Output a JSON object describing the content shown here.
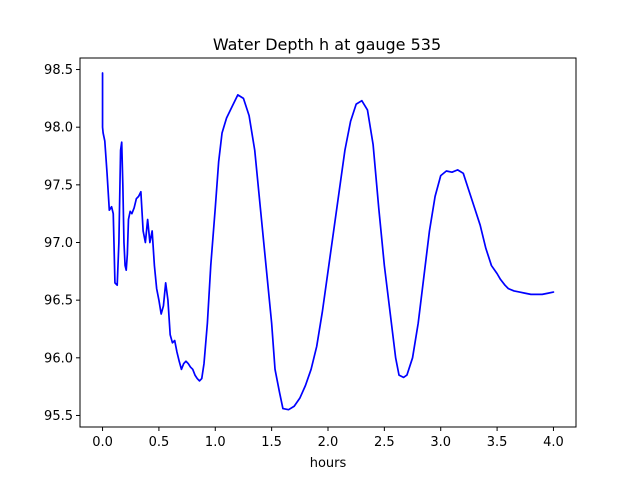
{
  "chart_data": {
    "type": "line",
    "title": "Water Depth h at gauge 535",
    "xlabel": "hours",
    "ylabel": "",
    "xlim": [
      -0.2,
      4.2
    ],
    "ylim": [
      95.4,
      98.6
    ],
    "xticks": [
      0.0,
      0.5,
      1.0,
      1.5,
      2.0,
      2.5,
      3.0,
      3.5,
      4.0
    ],
    "xtick_labels": [
      "0.0",
      "0.5",
      "1.0",
      "1.5",
      "2.0",
      "2.5",
      "3.0",
      "3.5",
      "4.0"
    ],
    "yticks": [
      95.5,
      96.0,
      96.5,
      97.0,
      97.5,
      98.0,
      98.5
    ],
    "ytick_labels": [
      "95.5",
      "96.0",
      "96.5",
      "97.0",
      "97.5",
      "98.0",
      "98.5"
    ],
    "grid": false,
    "colors": {
      "line": "#0000ff",
      "axes": "#000000",
      "background": "#ffffff"
    },
    "series": [
      {
        "x": [
          0.0,
          0.0,
          0.005,
          0.02,
          0.04,
          0.06,
          0.08,
          0.095,
          0.11,
          0.13,
          0.145,
          0.16,
          0.17,
          0.18,
          0.19,
          0.2,
          0.21,
          0.22,
          0.23,
          0.245,
          0.26,
          0.28,
          0.3,
          0.32,
          0.34,
          0.36,
          0.38,
          0.4,
          0.42,
          0.44,
          0.46,
          0.48,
          0.5,
          0.52,
          0.54,
          0.56,
          0.58,
          0.6,
          0.62,
          0.64,
          0.66,
          0.68,
          0.7,
          0.72,
          0.74,
          0.76,
          0.78,
          0.8,
          0.82,
          0.84,
          0.86,
          0.88,
          0.9,
          0.93,
          0.96,
          1.0,
          1.03,
          1.06,
          1.1,
          1.15,
          1.2,
          1.25,
          1.3,
          1.35,
          1.4,
          1.45,
          1.5,
          1.53,
          1.57,
          1.6,
          1.65,
          1.7,
          1.75,
          1.8,
          1.85,
          1.9,
          1.95,
          2.0,
          2.05,
          2.1,
          2.15,
          2.2,
          2.25,
          2.3,
          2.35,
          2.4,
          2.45,
          2.5,
          2.55,
          2.6,
          2.63,
          2.67,
          2.7,
          2.75,
          2.8,
          2.85,
          2.9,
          2.95,
          3.0,
          3.05,
          3.1,
          3.15,
          3.2,
          3.25,
          3.3,
          3.35,
          3.4,
          3.45,
          3.5,
          3.53,
          3.57,
          3.6,
          3.65,
          3.7,
          3.75,
          3.8,
          3.85,
          3.9,
          3.95,
          4.0
        ],
        "values": [
          98.47,
          98.0,
          97.95,
          97.88,
          97.6,
          97.28,
          97.31,
          97.25,
          96.65,
          96.63,
          97.0,
          97.8,
          97.87,
          97.5,
          97.0,
          96.8,
          96.76,
          96.9,
          97.2,
          97.27,
          97.25,
          97.3,
          97.38,
          97.4,
          97.44,
          97.1,
          97.0,
          97.2,
          97.0,
          97.1,
          96.8,
          96.6,
          96.5,
          96.38,
          96.45,
          96.65,
          96.5,
          96.2,
          96.13,
          96.15,
          96.05,
          95.97,
          95.9,
          95.95,
          95.97,
          95.95,
          95.92,
          95.9,
          95.85,
          95.82,
          95.8,
          95.82,
          95.95,
          96.3,
          96.8,
          97.3,
          97.7,
          97.95,
          98.08,
          98.18,
          98.28,
          98.25,
          98.1,
          97.8,
          97.3,
          96.8,
          96.3,
          95.9,
          95.7,
          95.56,
          95.55,
          95.58,
          95.65,
          95.76,
          95.9,
          96.1,
          96.4,
          96.75,
          97.1,
          97.45,
          97.8,
          98.05,
          98.2,
          98.23,
          98.15,
          97.85,
          97.3,
          96.8,
          96.4,
          96.0,
          95.85,
          95.83,
          95.85,
          96.0,
          96.3,
          96.7,
          97.1,
          97.4,
          97.58,
          97.62,
          97.61,
          97.63,
          97.6,
          97.45,
          97.3,
          97.15,
          96.95,
          96.8,
          96.73,
          96.68,
          96.63,
          96.6,
          96.58,
          96.57,
          96.56,
          96.55,
          96.55,
          96.55,
          96.56,
          96.57
        ]
      }
    ]
  }
}
